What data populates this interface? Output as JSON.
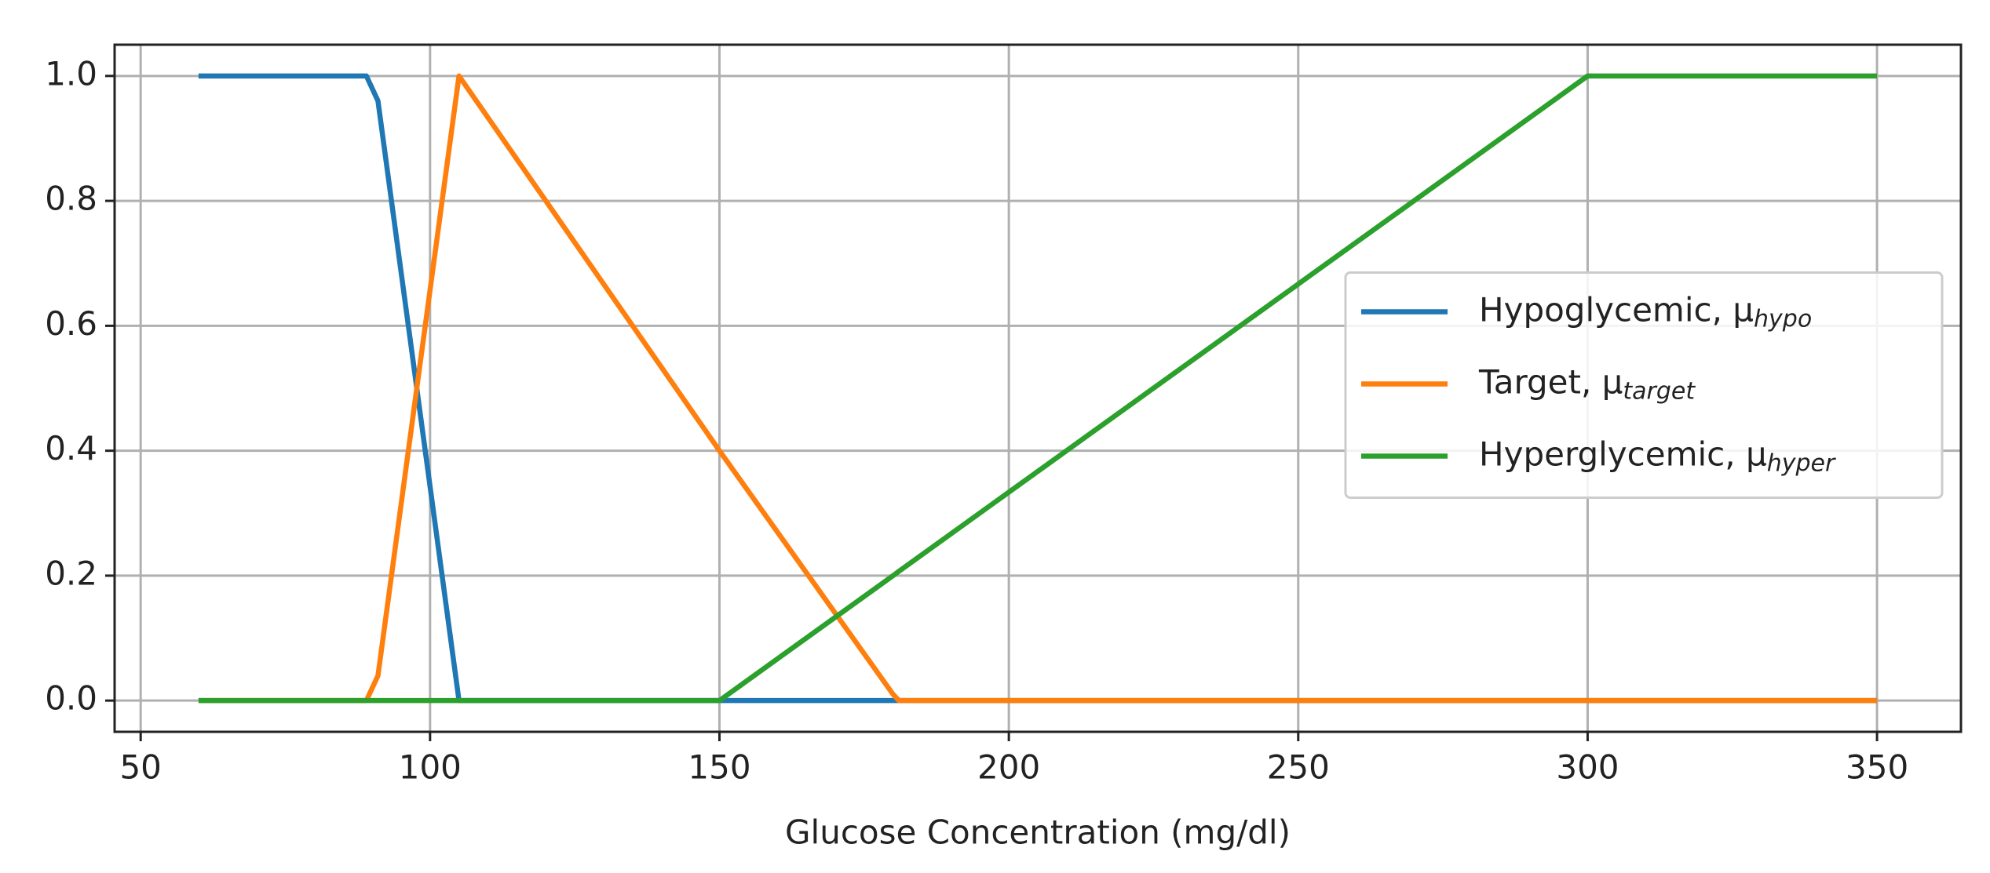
{
  "chart_data": {
    "type": "line",
    "xlabel": "Glucose Concentration (mg/dl)",
    "x": [
      60,
      89,
      91,
      105,
      150,
      180,
      181,
      300,
      350
    ],
    "series": [
      {
        "name": "Hypoglycemic, μ",
        "subscript": "hypo",
        "color": "#1f77b4",
        "values": [
          1,
          1,
          0.96,
          0,
          0,
          0,
          0,
          0,
          0
        ]
      },
      {
        "name": "Target, μ",
        "subscript": "target",
        "color": "#ff7f0e",
        "values": [
          0,
          0,
          0.04,
          1,
          0.4,
          0.01,
          0,
          0,
          0
        ]
      },
      {
        "name": "Hyperglycemic, μ",
        "subscript": "hyper",
        "color": "#2ca02c",
        "values": [
          0,
          0,
          0,
          0,
          0,
          0.2,
          0.207,
          1,
          1
        ]
      }
    ],
    "xlim": [
      45.5,
      364.5
    ],
    "xticks": [
      50,
      100,
      150,
      200,
      250,
      300,
      350
    ],
    "ylim": [
      -0.05,
      1.05
    ],
    "yticks": [
      {
        "value": 0,
        "label": "0.0"
      },
      {
        "value": 0.2,
        "label": "0.2"
      },
      {
        "value": 0.4,
        "label": "0.4"
      },
      {
        "value": 0.6,
        "label": "0.6"
      },
      {
        "value": 0.8,
        "label": "0.8"
      },
      {
        "value": 1,
        "label": "1.0"
      }
    ],
    "grid": true,
    "legend": "center right"
  }
}
